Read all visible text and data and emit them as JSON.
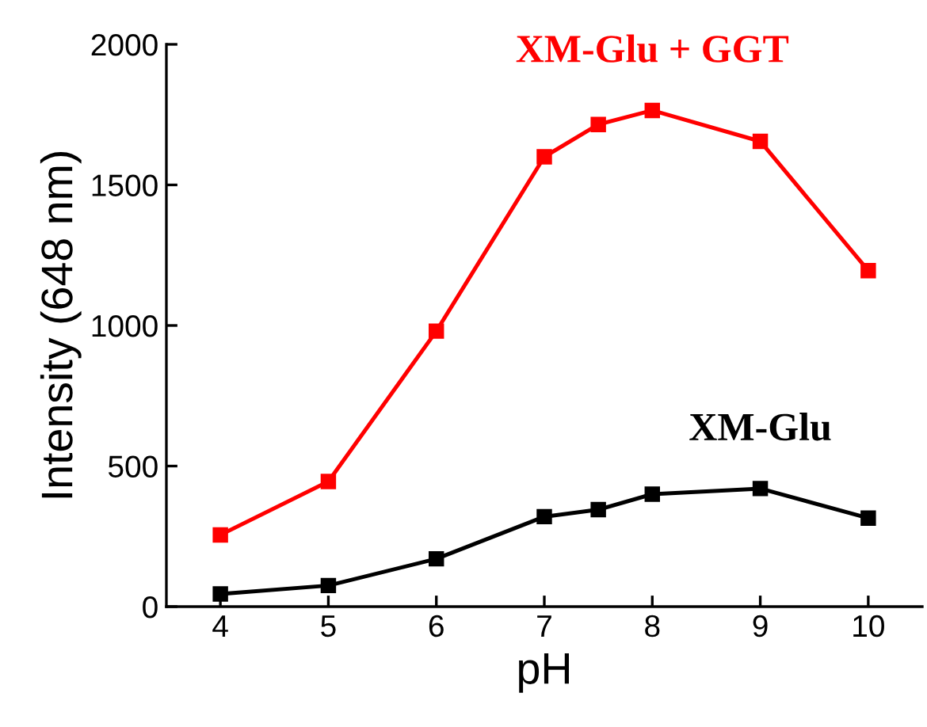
{
  "chart_data": {
    "type": "line",
    "xlabel": "pH",
    "ylabel": "Intensity (648 nm)",
    "x": [
      4,
      5,
      6,
      7,
      7.5,
      8,
      9,
      10
    ],
    "series": [
      {
        "name": "XM-Glu + GGT",
        "color": "#ff0000",
        "values": [
          255,
          445,
          980,
          1600,
          1715,
          1765,
          1655,
          1195
        ]
      },
      {
        "name": "XM-Glu",
        "color": "#000000",
        "values": [
          45,
          75,
          170,
          320,
          345,
          400,
          420,
          315
        ]
      }
    ],
    "xlim": [
      3.5,
      10.5
    ],
    "xticks": [
      4,
      5,
      6,
      7,
      8,
      9,
      10
    ],
    "ylim": [
      0,
      2000
    ],
    "yticks": [
      0,
      500,
      1000,
      1500,
      2000
    ],
    "marker": "square",
    "line_style": "solid",
    "grid": false,
    "legend": false
  }
}
